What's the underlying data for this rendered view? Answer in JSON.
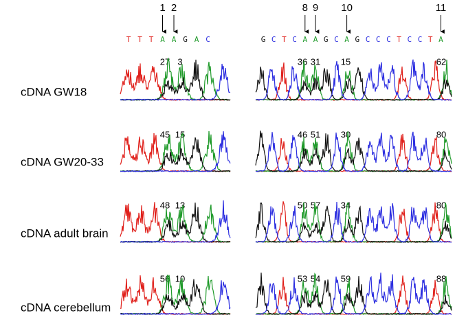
{
  "left": {
    "positions": [
      "1",
      "2"
    ],
    "sequence": [
      "T",
      "T",
      "T",
      "A",
      "A",
      "G",
      "A",
      "C"
    ]
  },
  "right": {
    "positions": [
      "8",
      "9",
      "10",
      "11"
    ],
    "sequence": [
      "G",
      "C",
      "T",
      "C",
      "A",
      "A",
      "G",
      "C",
      "A",
      "G",
      "C",
      "C",
      "C",
      "T",
      "C",
      "C",
      "T",
      "A"
    ]
  },
  "rows": [
    {
      "label": "cDNA GW18",
      "left": [
        27,
        3
      ],
      "right": [
        36,
        31,
        15,
        62
      ]
    },
    {
      "label": "cDNA GW20-33",
      "left": [
        45,
        15
      ],
      "right": [
        46,
        51,
        30,
        80
      ]
    },
    {
      "label": "cDNA adult brain",
      "left": [
        48,
        13
      ],
      "right": [
        50,
        57,
        34,
        80
      ]
    },
    {
      "label": "cDNA cerebellum",
      "left": [
        56,
        10
      ],
      "right": [
        53,
        54,
        59,
        88
      ]
    }
  ]
}
